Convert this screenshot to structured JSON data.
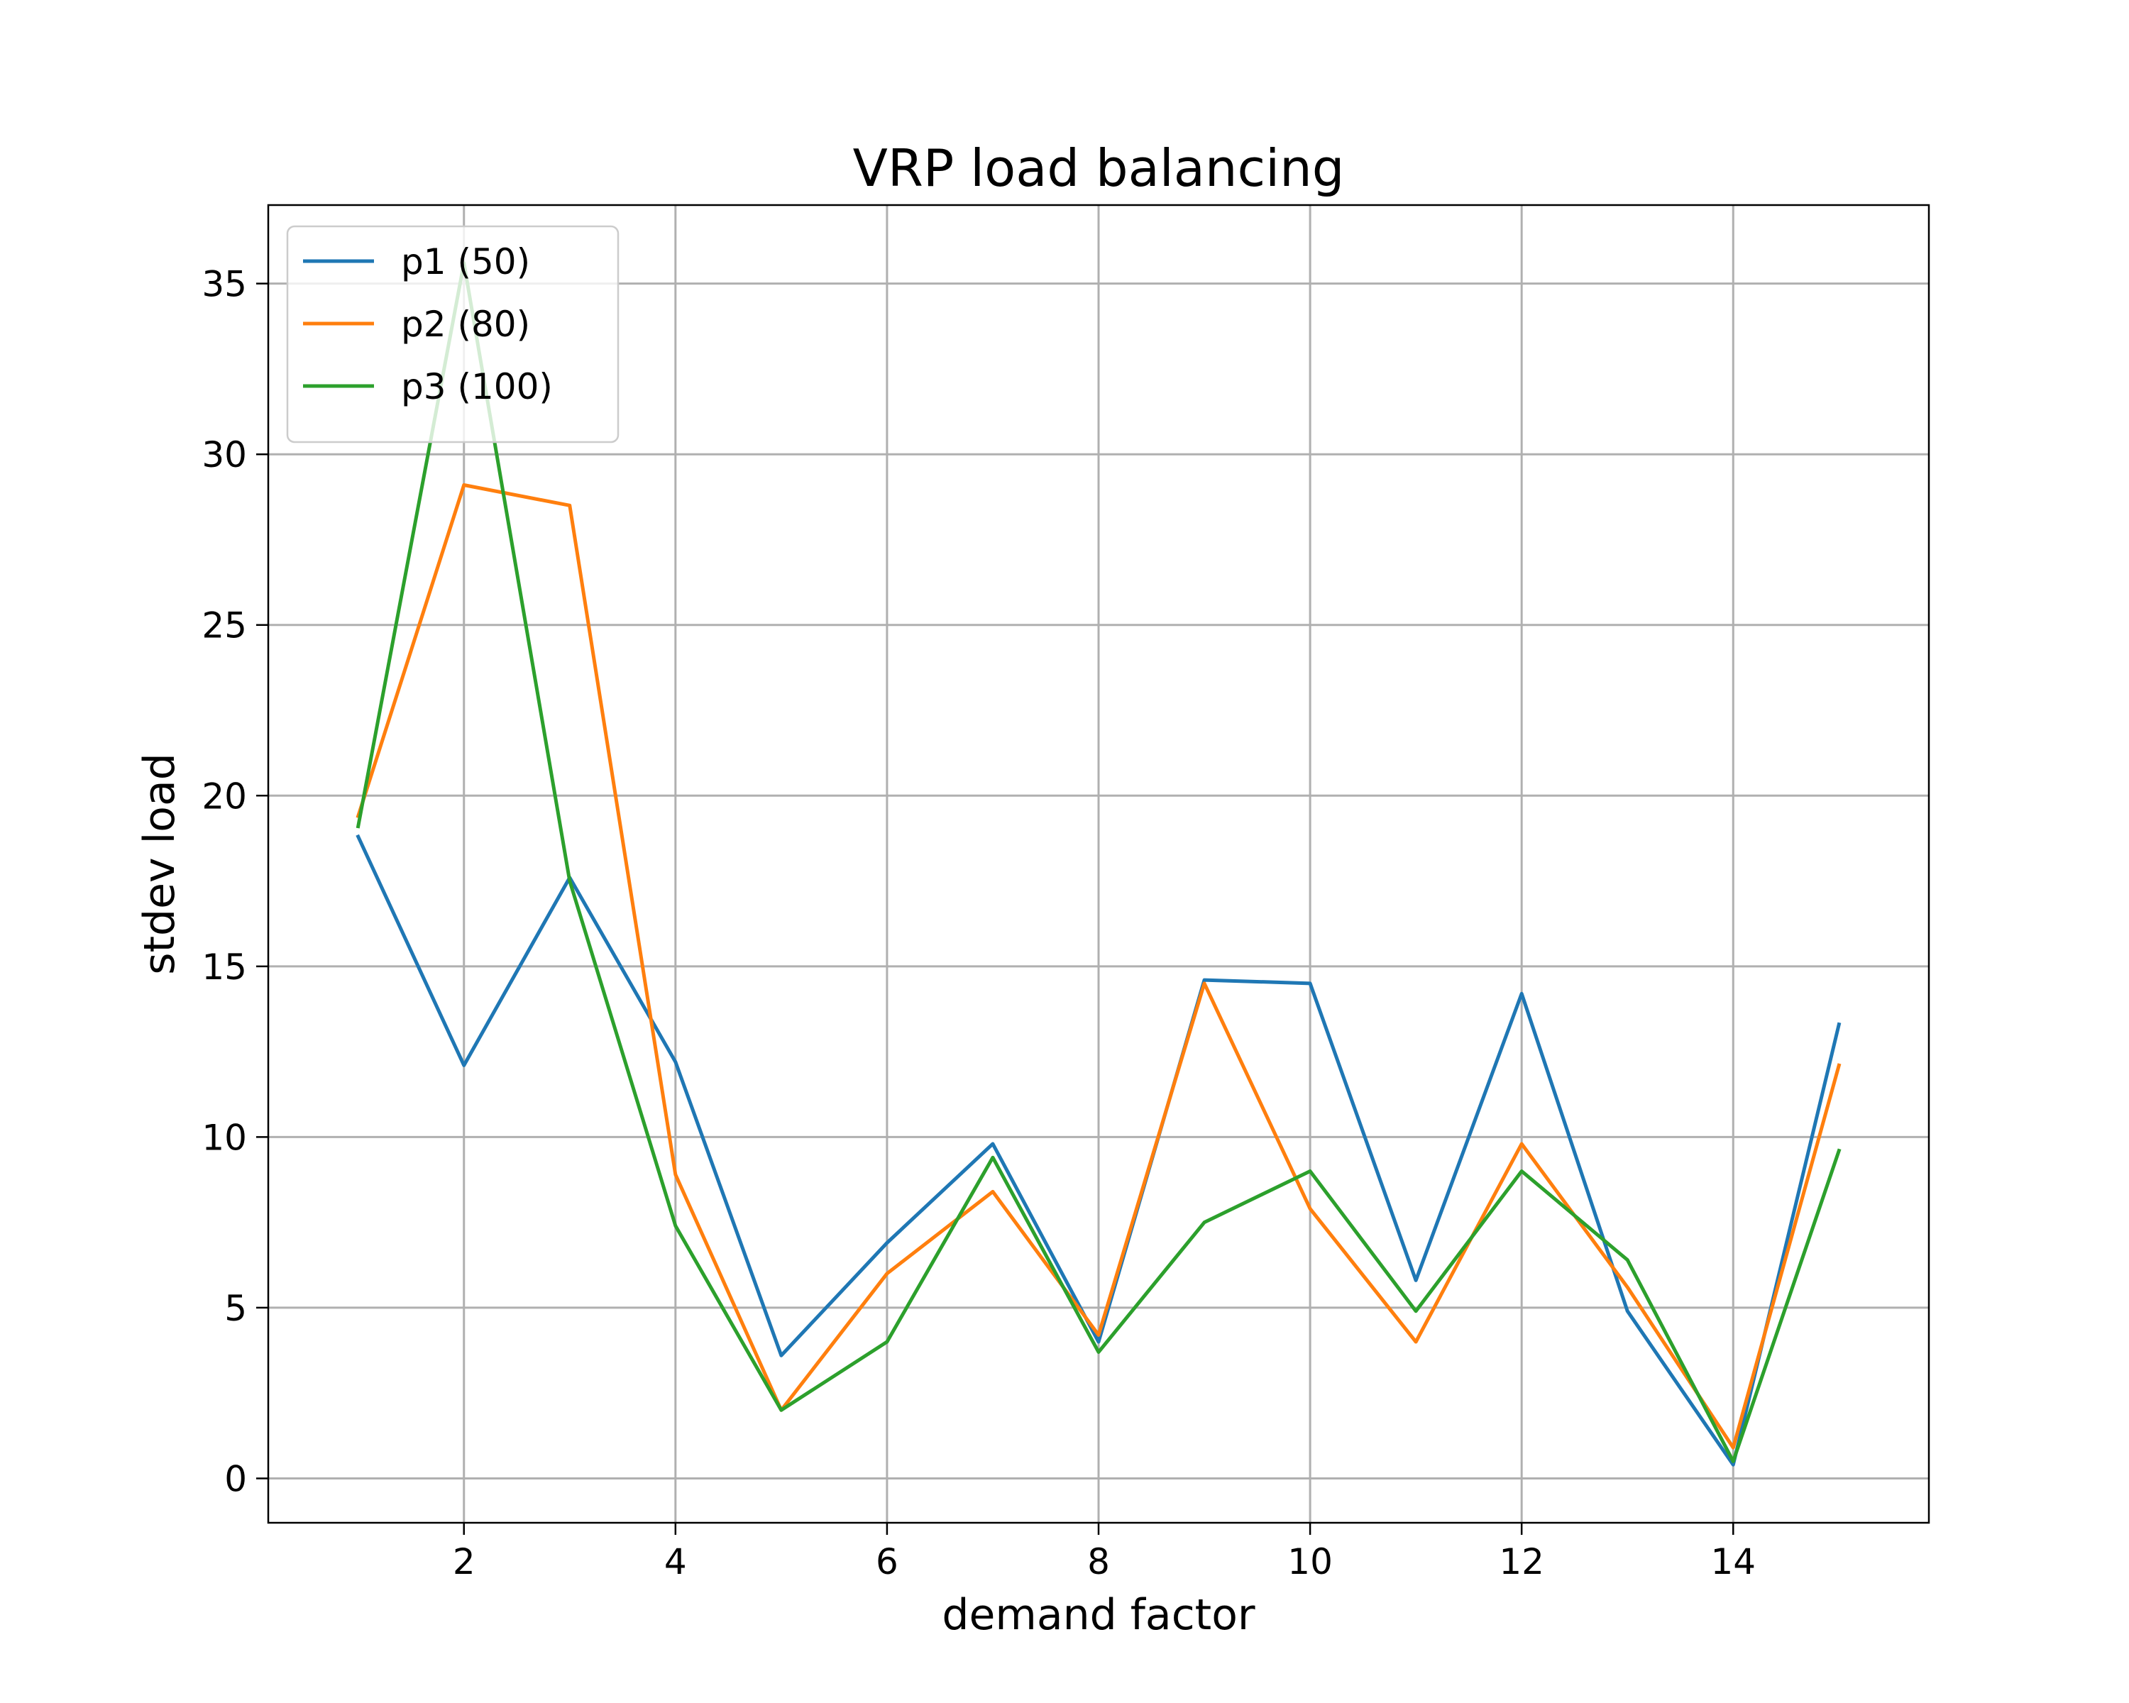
{
  "chart_data": {
    "type": "line",
    "title": "VRP load balancing",
    "xlabel": "demand factor",
    "ylabel": "stdev load",
    "xlim": [
      0.15,
      15.85
    ],
    "ylim": [
      -1.3,
      37.3
    ],
    "xticks": [
      2,
      4,
      6,
      8,
      10,
      12,
      14
    ],
    "yticks": [
      0,
      5,
      10,
      15,
      20,
      25,
      30,
      35
    ],
    "grid": true,
    "legend_position": "upper-left",
    "x": [
      1,
      2,
      3,
      4,
      5,
      6,
      7,
      8,
      9,
      10,
      11,
      12,
      13,
      14,
      15
    ],
    "series": [
      {
        "name": "p1 (50)",
        "color": "#1f77b4",
        "values": [
          18.8,
          12.1,
          17.6,
          12.2,
          3.6,
          6.9,
          9.8,
          4.0,
          14.6,
          14.5,
          5.8,
          14.2,
          4.9,
          0.4,
          13.3
        ]
      },
      {
        "name": "p2 (80)",
        "color": "#ff7f0e",
        "values": [
          19.4,
          29.1,
          28.5,
          8.9,
          2.0,
          6.0,
          8.4,
          4.2,
          14.5,
          7.9,
          4.0,
          9.8,
          5.6,
          0.9,
          12.1
        ]
      },
      {
        "name": "p3 (100)",
        "color": "#2ca02c",
        "values": [
          19.1,
          35.6,
          17.5,
          7.4,
          2.0,
          4.0,
          9.4,
          3.7,
          7.5,
          9.0,
          4.9,
          9.0,
          6.4,
          0.5,
          9.6
        ]
      }
    ]
  }
}
